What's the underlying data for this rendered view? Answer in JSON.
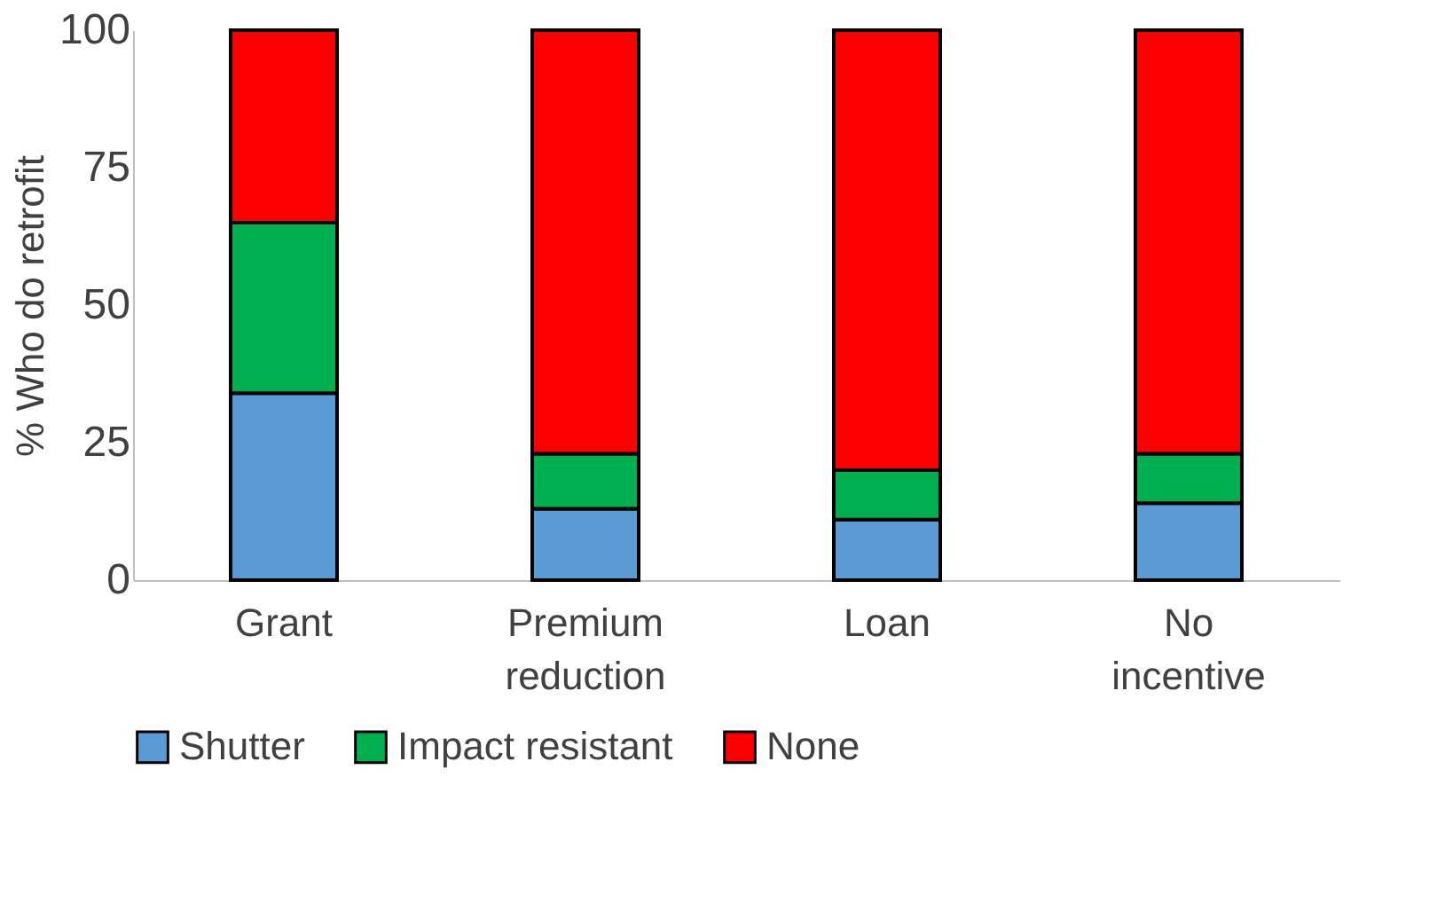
{
  "chart_data": {
    "type": "bar",
    "stacked": true,
    "ylabel": "% Who do retrofit",
    "categories": [
      "Grant",
      "Premium reduction",
      "Loan",
      "No incentive"
    ],
    "series": [
      {
        "name": "Shutter",
        "color": "#5b9bd5",
        "values": [
          34,
          13,
          11,
          14
        ]
      },
      {
        "name": "Impact resistant",
        "color": "#00b050",
        "values": [
          31,
          10,
          9,
          9
        ]
      },
      {
        "name": "None",
        "color": "#ff0000",
        "values": [
          35,
          77,
          80,
          77
        ]
      }
    ],
    "ylim": [
      0,
      100
    ],
    "yticks": [
      0,
      25,
      50,
      75,
      100
    ],
    "grid": false,
    "legend": "bottom"
  }
}
